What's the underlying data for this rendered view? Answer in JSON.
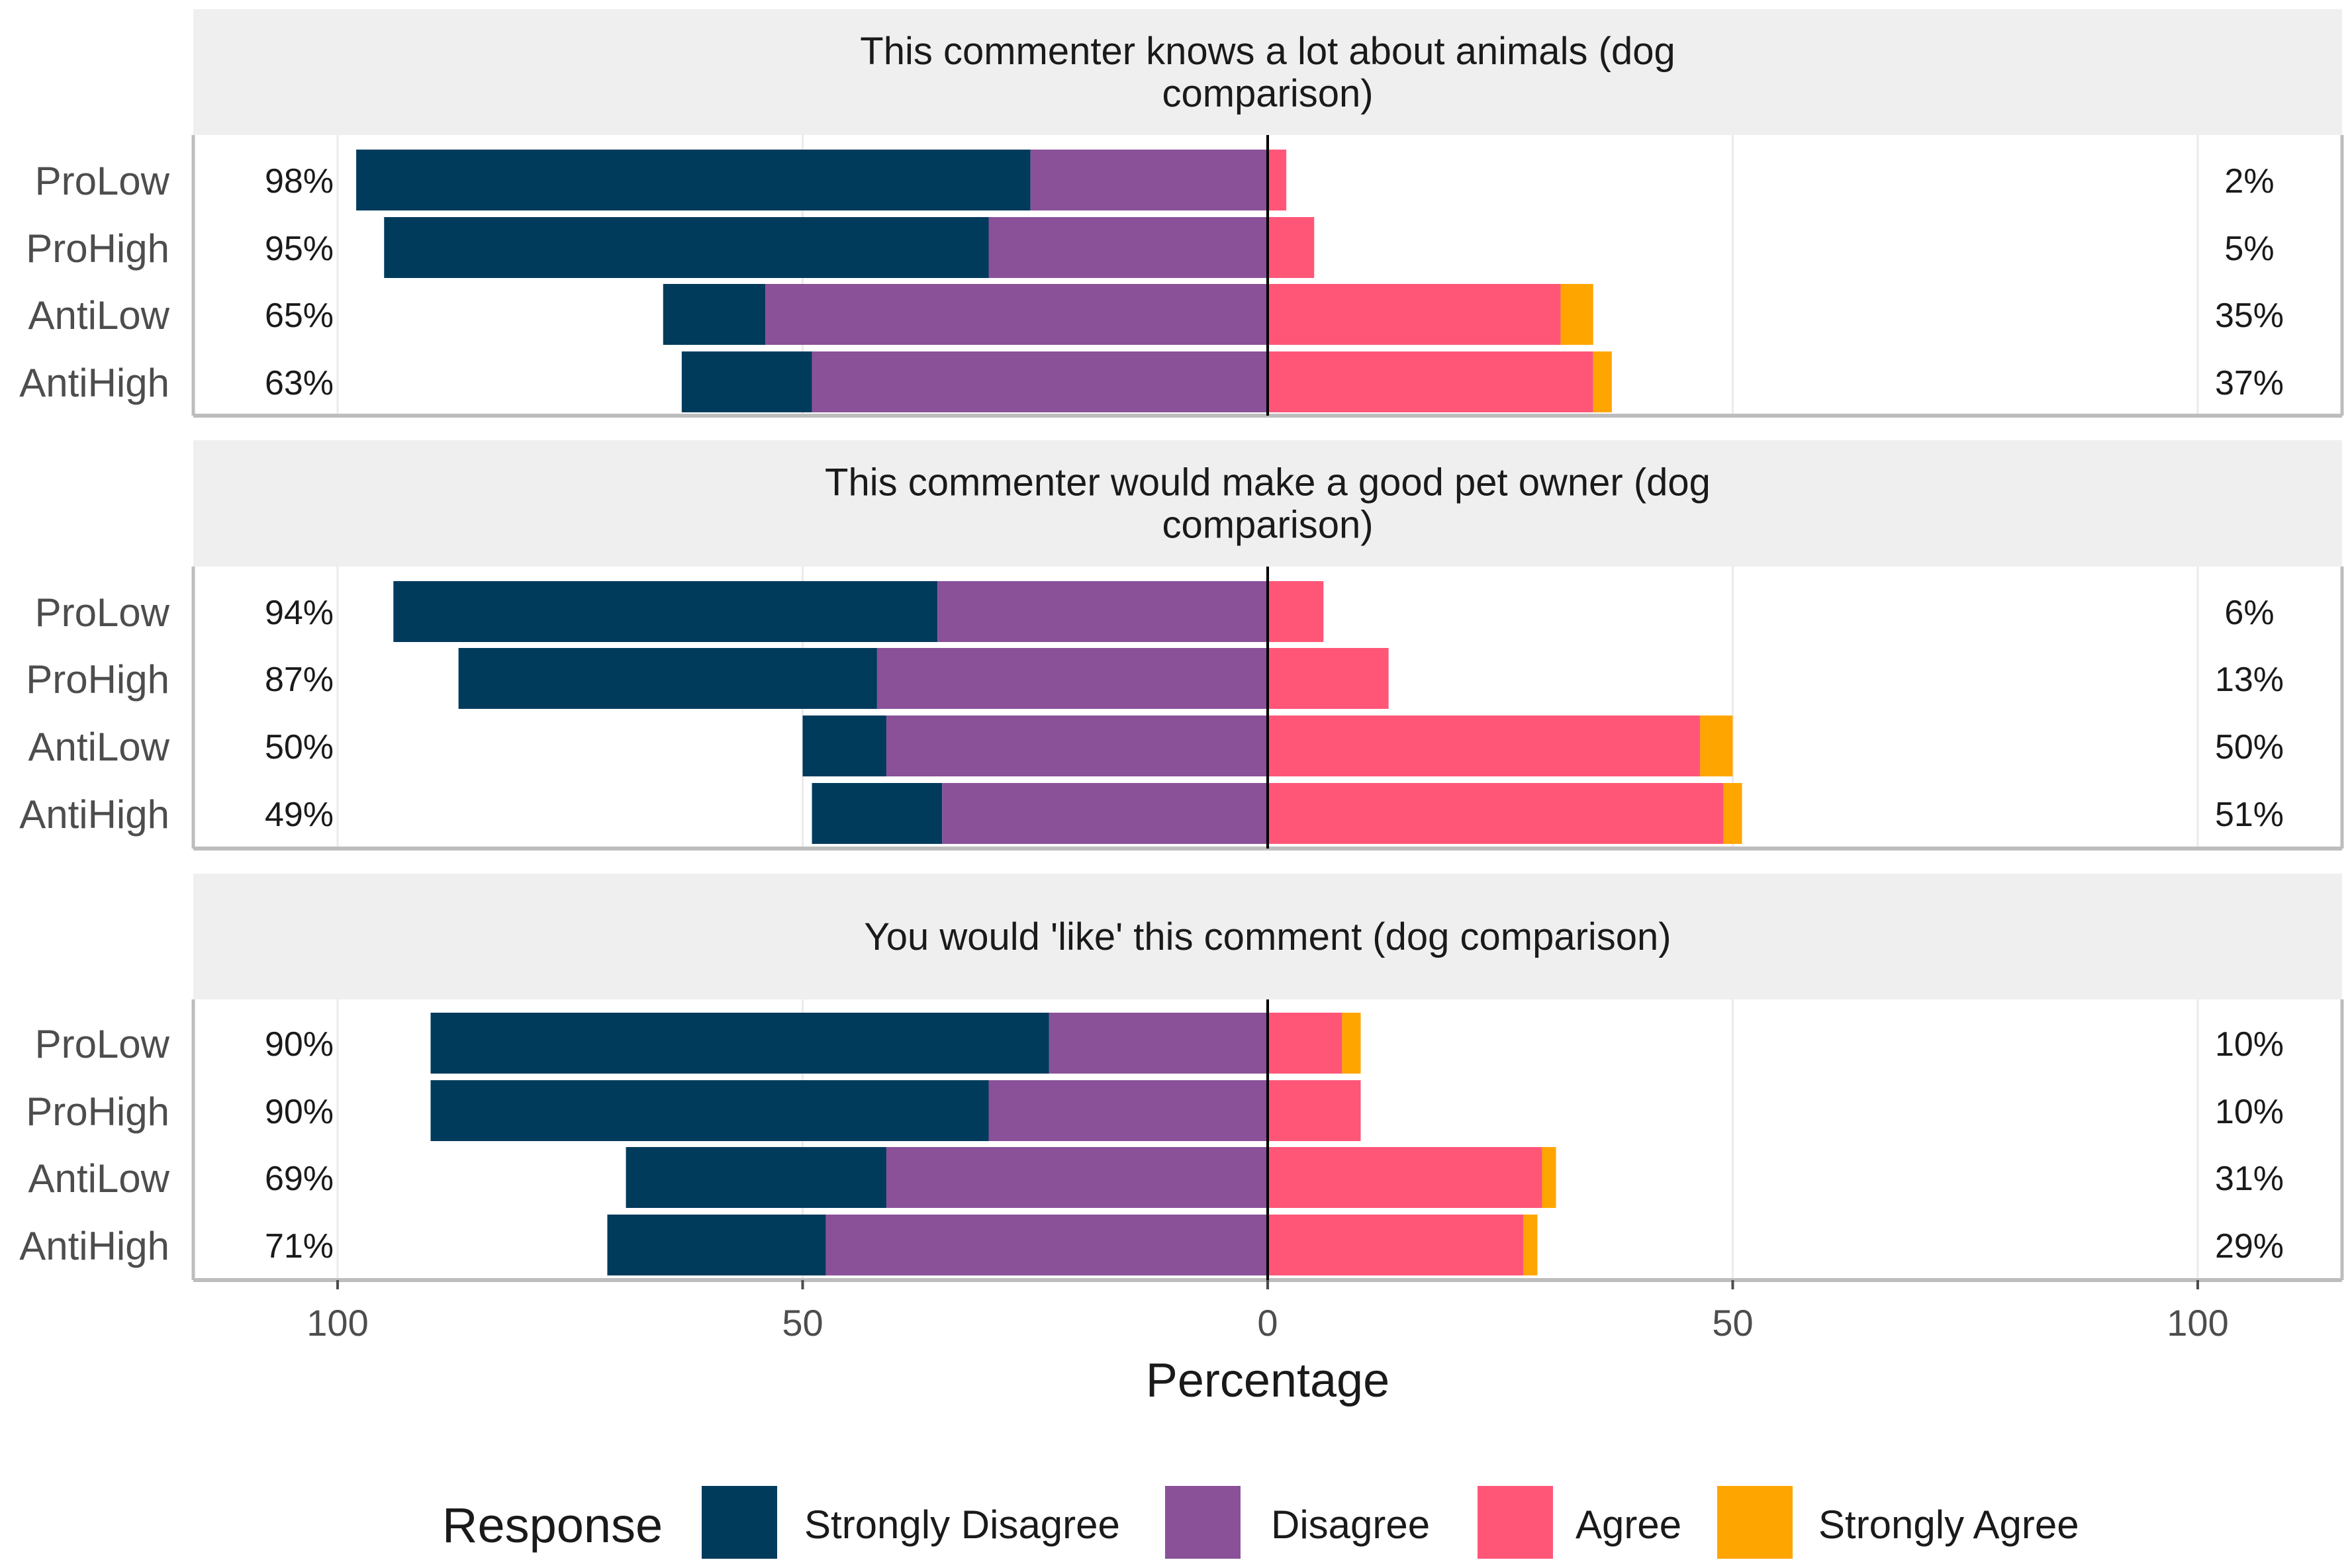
{
  "chart_data": {
    "type": "bar",
    "orientation": "horizontal",
    "stacked": "diverging",
    "xlabel": "Percentage",
    "xticks": [
      {
        "value": -100,
        "label": "100"
      },
      {
        "value": -50,
        "label": "50"
      },
      {
        "value": 0,
        "label": "0"
      },
      {
        "value": 50,
        "label": "50"
      },
      {
        "value": 100,
        "label": "100"
      }
    ],
    "xlim": [
      -100,
      100
    ],
    "legend": {
      "title": "Response",
      "position": "bottom",
      "items": [
        {
          "name": "Strongly Disagree",
          "color": "#003b5c"
        },
        {
          "name": "Disagree",
          "color": "#8a5199"
        },
        {
          "name": "Agree",
          "color": "#ff5678"
        },
        {
          "name": "Strongly Agree",
          "color": "#ffa500"
        }
      ]
    },
    "panels": [
      {
        "title": "This commenter knows a lot about animals (dog comparison)",
        "title_lines": [
          "This commenter knows a lot about animals (dog",
          "comparison)"
        ],
        "rows": [
          {
            "category": "ProLow",
            "strongly_disagree": 72.5,
            "disagree": 25.5,
            "agree": 2,
            "strongly_agree": 0,
            "left_label": "98%",
            "right_label": "2%"
          },
          {
            "category": "ProHigh",
            "strongly_disagree": 65,
            "disagree": 30,
            "agree": 5,
            "strongly_agree": 0,
            "left_label": "95%",
            "right_label": "5%"
          },
          {
            "category": "AntiLow",
            "strongly_disagree": 11,
            "disagree": 54,
            "agree": 31.5,
            "strongly_agree": 3.5,
            "left_label": "65%",
            "right_label": "35%"
          },
          {
            "category": "AntiHigh",
            "strongly_disagree": 14,
            "disagree": 49,
            "agree": 35,
            "strongly_agree": 2,
            "left_label": "63%",
            "right_label": "37%"
          }
        ]
      },
      {
        "title": "This commenter would make a good pet owner (dog comparison)",
        "title_lines": [
          "This commenter would make a good pet owner (dog",
          "comparison)"
        ],
        "rows": [
          {
            "category": "ProLow",
            "strongly_disagree": 58.5,
            "disagree": 35.5,
            "agree": 6,
            "strongly_agree": 0,
            "left_label": "94%",
            "right_label": "6%"
          },
          {
            "category": "ProHigh",
            "strongly_disagree": 45,
            "disagree": 42,
            "agree": 13,
            "strongly_agree": 0,
            "left_label": "87%",
            "right_label": "13%"
          },
          {
            "category": "AntiLow",
            "strongly_disagree": 9,
            "disagree": 41,
            "agree": 46.5,
            "strongly_agree": 3.5,
            "left_label": "50%",
            "right_label": "50%"
          },
          {
            "category": "AntiHigh",
            "strongly_disagree": 14,
            "disagree": 35,
            "agree": 49,
            "strongly_agree": 2,
            "left_label": "49%",
            "right_label": "51%"
          }
        ]
      },
      {
        "title": "You would 'like' this comment (dog comparison)",
        "title_lines": [
          "You would 'like' this comment (dog comparison)"
        ],
        "rows": [
          {
            "category": "ProLow",
            "strongly_disagree": 66.5,
            "disagree": 23.5,
            "agree": 8,
            "strongly_agree": 2,
            "left_label": "90%",
            "right_label": "10%"
          },
          {
            "category": "ProHigh",
            "strongly_disagree": 60,
            "disagree": 30,
            "agree": 10,
            "strongly_agree": 0,
            "left_label": "90%",
            "right_label": "10%"
          },
          {
            "category": "AntiLow",
            "strongly_disagree": 28,
            "disagree": 41,
            "agree": 29.5,
            "strongly_agree": 1.5,
            "left_label": "69%",
            "right_label": "31%"
          },
          {
            "category": "AntiHigh",
            "strongly_disagree": 23.5,
            "disagree": 47.5,
            "agree": 27.5,
            "strongly_agree": 1.5,
            "left_label": "71%",
            "right_label": "29%"
          }
        ]
      }
    ]
  }
}
